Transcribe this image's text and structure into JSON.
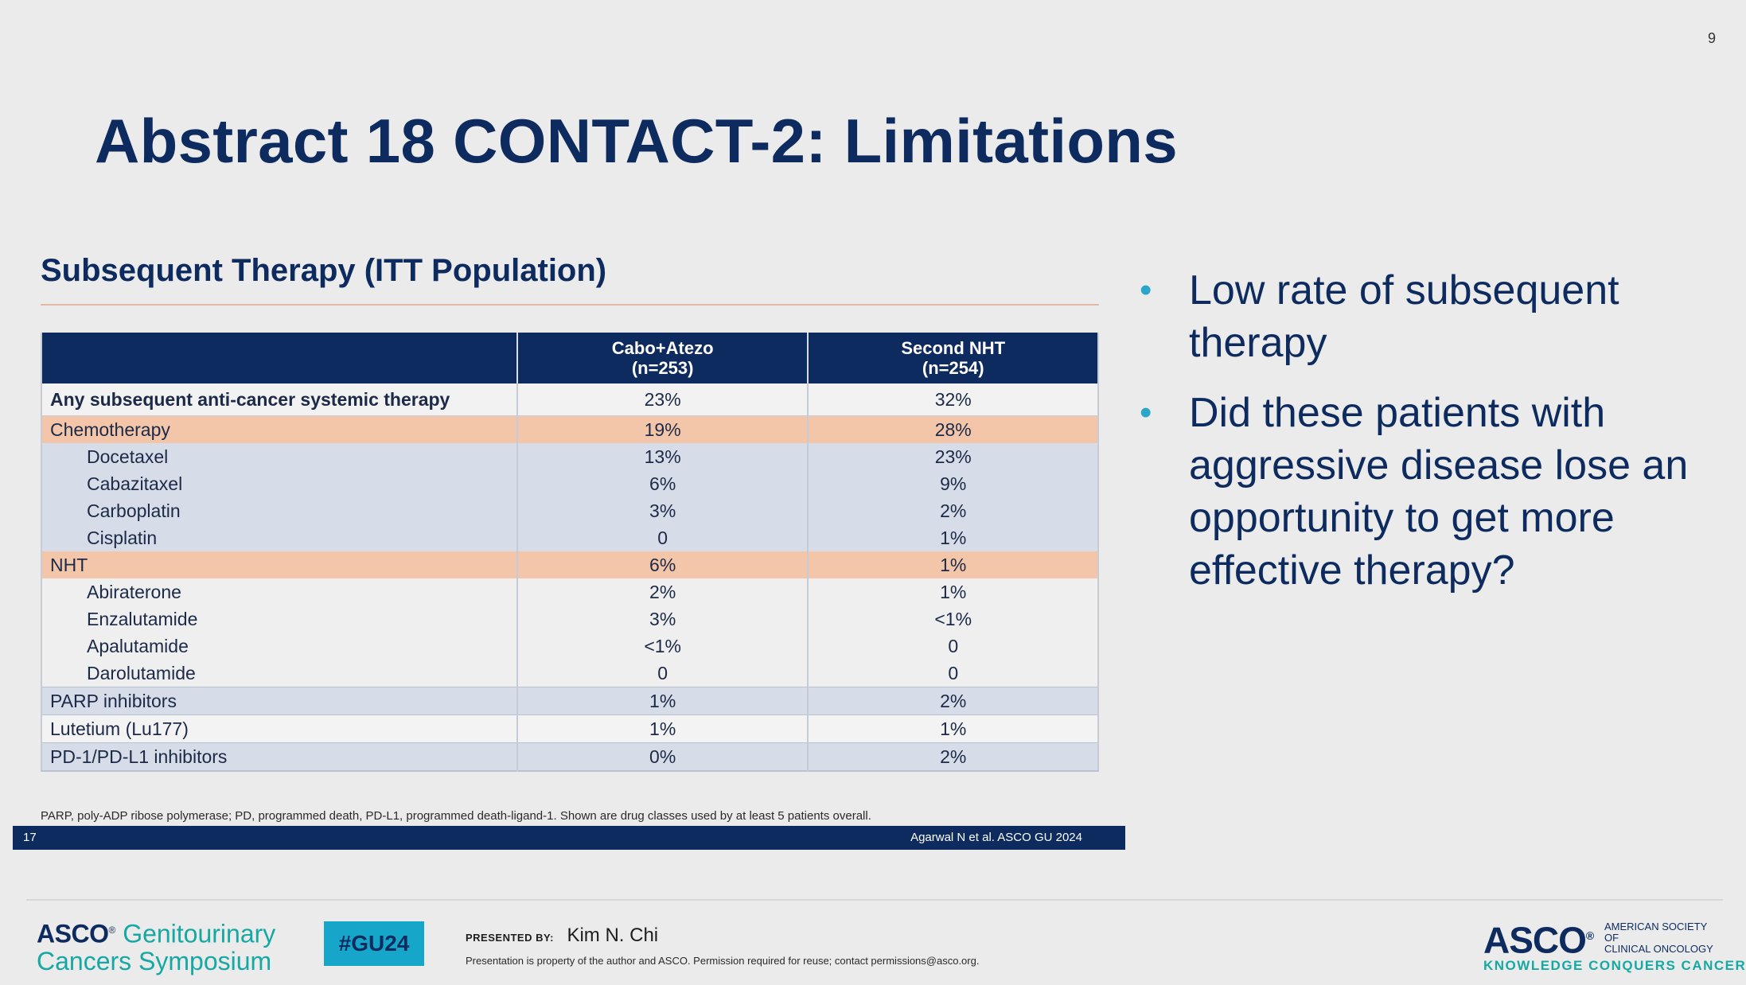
{
  "page_number": "9",
  "title": "Abstract 18 CONTACT-2: Limitations",
  "subtitle": "Subsequent Therapy (ITT Population)",
  "table": {
    "columns": [
      {
        "name": "Cabo+Atezo",
        "n": "(n=253)"
      },
      {
        "name": "Second NHT",
        "n": "(n=254)"
      }
    ],
    "rows": [
      {
        "label": "Any subsequent anti-cancer systemic therapy",
        "cabo": "23%",
        "nht": "32%"
      },
      {
        "label": "Chemotherapy",
        "cabo": "19%",
        "nht": "28%"
      },
      {
        "label": "Docetaxel",
        "cabo": "13%",
        "nht": "23%"
      },
      {
        "label": "Cabazitaxel",
        "cabo": "6%",
        "nht": "9%"
      },
      {
        "label": "Carboplatin",
        "cabo": "3%",
        "nht": "2%"
      },
      {
        "label": "Cisplatin",
        "cabo": "0",
        "nht": "1%"
      },
      {
        "label": "NHT",
        "cabo": "6%",
        "nht": "1%"
      },
      {
        "label": "Abiraterone",
        "cabo": "2%",
        "nht": "1%"
      },
      {
        "label": "Enzalutamide",
        "cabo": "3%",
        "nht": "<1%"
      },
      {
        "label": "Apalutamide",
        "cabo": "<1%",
        "nht": "0"
      },
      {
        "label": "Darolutamide",
        "cabo": "0",
        "nht": "0"
      },
      {
        "label": "PARP inhibitors",
        "cabo": "1%",
        "nht": "2%"
      },
      {
        "label": "Lutetium (Lu177)",
        "cabo": "1%",
        "nht": "1%"
      },
      {
        "label": "PD-1/PD-L1 inhibitors",
        "cabo": "0%",
        "nht": "2%"
      }
    ]
  },
  "footnote": "PARP, poly-ADP ribose polymerase; PD, programmed death, PD-L1, programmed death-ligand-1. Shown are drug classes used by at least 5 patients overall.",
  "slide_number": "17",
  "citation": "Agarwal N et al. ASCO GU 2024",
  "bullets": [
    "Low rate of subsequent therapy",
    "Did these patients with aggressive disease lose an opportunity to get more effective therapy?"
  ],
  "footer": {
    "asco_word": "ASCO",
    "symposium_line1": "Genitourinary",
    "symposium_line2": "Cancers Symposium",
    "hashtag": "#GU24",
    "presented_by_label": "PRESENTED BY:",
    "presenter": "Kim N. Chi",
    "property_notice": "Presentation is property of the author and ASCO. Permission required for reuse; contact permissions@asco.org.",
    "asco_logo": "ASCO",
    "society_line1": "AMERICAN SOCIETY OF",
    "society_line2": "CLINICAL ONCOLOGY",
    "tagline": "KNOWLEDGE CONQUERS CANCER"
  }
}
